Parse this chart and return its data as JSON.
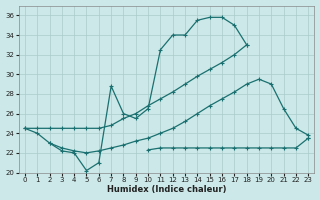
{
  "xlabel": "Humidex (Indice chaleur)",
  "background_color": "#cce8e8",
  "grid_color": "#aacccc",
  "line_color": "#1a7070",
  "xlim": [
    -0.5,
    23.5
  ],
  "ylim": [
    20,
    37
  ],
  "xticks": [
    0,
    1,
    2,
    3,
    4,
    5,
    6,
    7,
    8,
    9,
    10,
    11,
    12,
    13,
    14,
    15,
    16,
    17,
    18,
    19,
    20,
    21,
    22,
    23
  ],
  "yticks": [
    20,
    22,
    24,
    26,
    28,
    30,
    32,
    34,
    36
  ],
  "series": [
    {
      "x": [
        0,
        1,
        2,
        3,
        4,
        5,
        6,
        7,
        8,
        9,
        10,
        11,
        12,
        13,
        14,
        15,
        16,
        17,
        18,
        19,
        20,
        21,
        22,
        23
      ],
      "y": [
        24.5,
        24.0,
        23.0,
        22.2,
        22.0,
        20.2,
        21.0,
        28.8,
        26.0,
        25.5,
        26.5,
        32.5,
        34.0,
        34.0,
        35.5,
        35.8,
        35.8,
        35.0,
        33.0,
        null,
        null,
        null,
        null,
        null
      ]
    },
    {
      "x": [
        0,
        1,
        2,
        3,
        4,
        5,
        6,
        7,
        8,
        9,
        10,
        11,
        12,
        13,
        14,
        15,
        16,
        17,
        18,
        19,
        20,
        21,
        22,
        23
      ],
      "y": [
        24.5,
        24.5,
        24.5,
        24.5,
        24.5,
        24.5,
        24.5,
        24.8,
        25.5,
        26.0,
        26.8,
        27.5,
        28.2,
        29.0,
        29.8,
        30.5,
        31.2,
        32.0,
        33.0,
        null,
        null,
        null,
        null,
        23.5
      ]
    },
    {
      "x": [
        0,
        1,
        2,
        3,
        4,
        5,
        6,
        7,
        8,
        9,
        10,
        11,
        12,
        13,
        14,
        15,
        16,
        17,
        18,
        19,
        20,
        21,
        22,
        23
      ],
      "y": [
        null,
        null,
        23.0,
        22.5,
        22.2,
        22.0,
        22.2,
        22.5,
        22.8,
        23.2,
        23.5,
        24.0,
        24.5,
        25.2,
        26.0,
        26.8,
        27.5,
        28.2,
        29.0,
        29.5,
        29.0,
        26.5,
        24.5,
        23.8
      ]
    },
    {
      "x": [
        0,
        1,
        2,
        3,
        4,
        5,
        6,
        7,
        8,
        9,
        10,
        11,
        12,
        13,
        14,
        15,
        16,
        17,
        18,
        19,
        20,
        21,
        22,
        23
      ],
      "y": [
        null,
        null,
        null,
        null,
        null,
        null,
        null,
        null,
        null,
        null,
        22.3,
        22.5,
        22.5,
        22.5,
        22.5,
        22.5,
        22.5,
        22.5,
        22.5,
        22.5,
        22.5,
        22.5,
        22.5,
        23.5
      ]
    }
  ]
}
